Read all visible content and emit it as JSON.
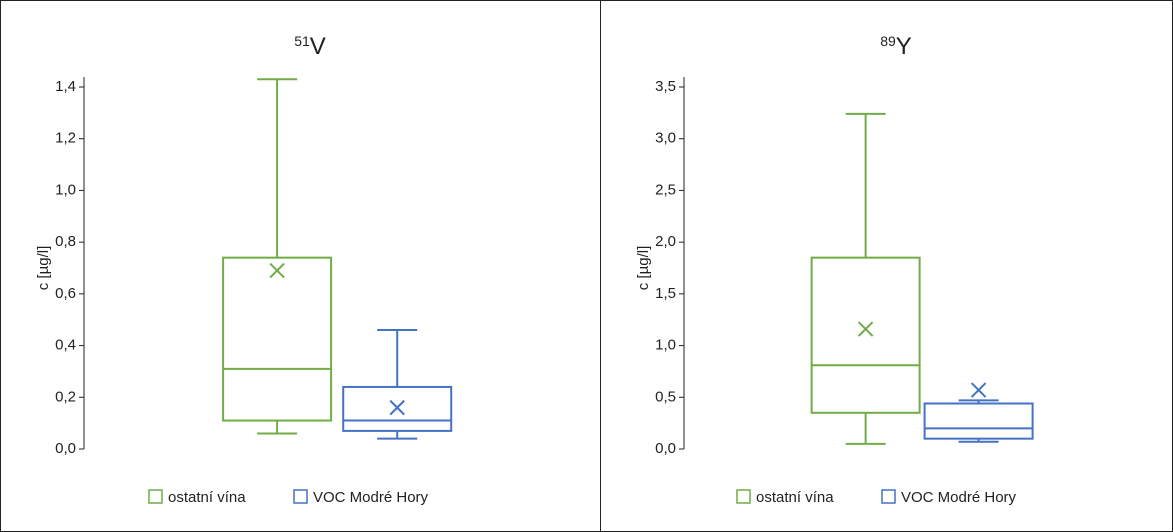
{
  "chart_data": [
    {
      "type": "box",
      "title_superscript": "51",
      "title": "V",
      "y_label": "c [µg/l]",
      "ylim": [
        0,
        1.4
      ],
      "yticks": [
        {
          "value": 0,
          "label": "0,0"
        },
        {
          "value": 0.2,
          "label": "0,2"
        },
        {
          "value": 0.4,
          "label": "0,4"
        },
        {
          "value": 0.6,
          "label": "0,6"
        },
        {
          "value": 0.8,
          "label": "0,8"
        },
        {
          "value": 1.0,
          "label": "1,0"
        },
        {
          "value": 1.2,
          "label": "1,2"
        },
        {
          "value": 1.4,
          "label": "1,4"
        }
      ],
      "series": [
        {
          "name": "ostatní vína",
          "color": "#70ad47",
          "min": 0.06,
          "q1": 0.11,
          "median": 0.31,
          "q3": 0.74,
          "max": 1.43,
          "mean": 0.69
        },
        {
          "name": "VOC Modré Hory",
          "color": "#4472c4",
          "min": 0.04,
          "q1": 0.07,
          "median": 0.11,
          "q3": 0.24,
          "max": 0.46,
          "mean": 0.16
        }
      ]
    },
    {
      "type": "box",
      "title_superscript": "89",
      "title": "Y",
      "y_label": "c [µg/l]",
      "ylim": [
        0,
        3.5
      ],
      "yticks": [
        {
          "value": 0,
          "label": "0,0"
        },
        {
          "value": 0.5,
          "label": "0,5"
        },
        {
          "value": 1.0,
          "label": "1,0"
        },
        {
          "value": 1.5,
          "label": "1,5"
        },
        {
          "value": 2.0,
          "label": "2,0"
        },
        {
          "value": 2.5,
          "label": "2,5"
        },
        {
          "value": 3.0,
          "label": "3,0"
        },
        {
          "value": 3.5,
          "label": "3,5"
        }
      ],
      "series": [
        {
          "name": "ostatní vína",
          "color": "#70ad47",
          "min": 0.05,
          "q1": 0.35,
          "median": 0.81,
          "q3": 1.85,
          "max": 3.24,
          "mean": 1.16
        },
        {
          "name": "VOC Modré Hory",
          "color": "#4472c4",
          "min": 0.07,
          "q1": 0.1,
          "median": 0.2,
          "q3": 0.44,
          "max": 0.47,
          "mean": 0.57
        }
      ]
    }
  ]
}
